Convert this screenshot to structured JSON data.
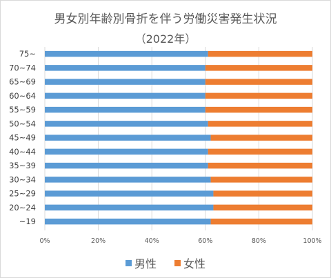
{
  "chart_data": {
    "type": "bar",
    "orientation": "horizontal",
    "stacked": "percent",
    "title": "男女別年齢別骨折を伴う労働災害発生状況",
    "subtitle": "（2022年）",
    "categories": [
      "75~",
      "70~74",
      "65~69",
      "60~64",
      "55~59",
      "50~54",
      "45~49",
      "40~44",
      "35~39",
      "30~34",
      "25~29",
      "20~24",
      "~19"
    ],
    "series": [
      {
        "name": "男性",
        "color": "#5b9bd5",
        "values": [
          61,
          60,
          60,
          60,
          60,
          61,
          62,
          61,
          61,
          62,
          63,
          63,
          62
        ]
      },
      {
        "name": "女性",
        "color": "#ed7d31",
        "values": [
          39,
          40,
          40,
          40,
          40,
          39,
          38,
          39,
          39,
          38,
          37,
          37,
          38
        ]
      }
    ],
    "xticks": [
      "0%",
      "20%",
      "40%",
      "60%",
      "80%",
      "100%"
    ],
    "xlim": [
      0,
      100
    ],
    "grid": true,
    "legend": "bottom"
  }
}
